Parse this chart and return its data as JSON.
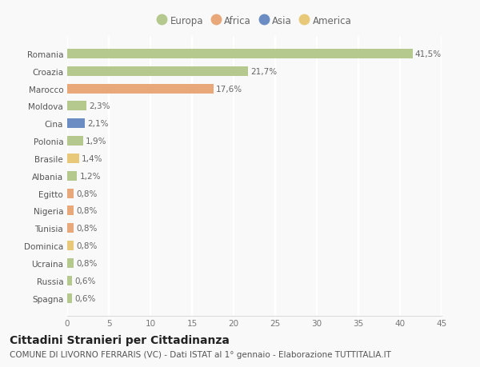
{
  "categories": [
    "Spagna",
    "Russia",
    "Ucraina",
    "Dominica",
    "Tunisia",
    "Nigeria",
    "Egitto",
    "Albania",
    "Brasile",
    "Polonia",
    "Cina",
    "Moldova",
    "Marocco",
    "Croazia",
    "Romania"
  ],
  "values": [
    0.6,
    0.6,
    0.8,
    0.8,
    0.8,
    0.8,
    0.8,
    1.2,
    1.4,
    1.9,
    2.1,
    2.3,
    17.6,
    21.7,
    41.5
  ],
  "labels": [
    "0,6%",
    "0,6%",
    "0,8%",
    "0,8%",
    "0,8%",
    "0,8%",
    "0,8%",
    "1,2%",
    "1,4%",
    "1,9%",
    "2,1%",
    "2,3%",
    "17,6%",
    "21,7%",
    "41,5%"
  ],
  "colors": [
    "#b5c98e",
    "#b5c98e",
    "#b5c98e",
    "#e8c97a",
    "#e8a87a",
    "#e8a87a",
    "#e8a87a",
    "#b5c98e",
    "#e8c97a",
    "#b5c98e",
    "#6b8dc4",
    "#b5c98e",
    "#e8a87a",
    "#b5c98e",
    "#b5c98e"
  ],
  "legend": [
    {
      "label": "Europa",
      "color": "#b5c98e"
    },
    {
      "label": "Africa",
      "color": "#e8a87a"
    },
    {
      "label": "Asia",
      "color": "#6b8dc4"
    },
    {
      "label": "America",
      "color": "#e8c97a"
    }
  ],
  "title": "Cittadini Stranieri per Cittadinanza",
  "subtitle": "COMUNE DI LIVORNO FERRARIS (VC) - Dati ISTAT al 1° gennaio - Elaborazione TUTTITALIA.IT",
  "xlim": [
    0,
    45
  ],
  "xticks": [
    0,
    5,
    10,
    15,
    20,
    25,
    30,
    35,
    40,
    45
  ],
  "background_color": "#f9f9f9",
  "grid_color": "#ffffff",
  "bar_height": 0.55,
  "title_fontsize": 10,
  "subtitle_fontsize": 7.5,
  "label_fontsize": 7.5,
  "tick_fontsize": 7.5,
  "legend_fontsize": 8.5
}
